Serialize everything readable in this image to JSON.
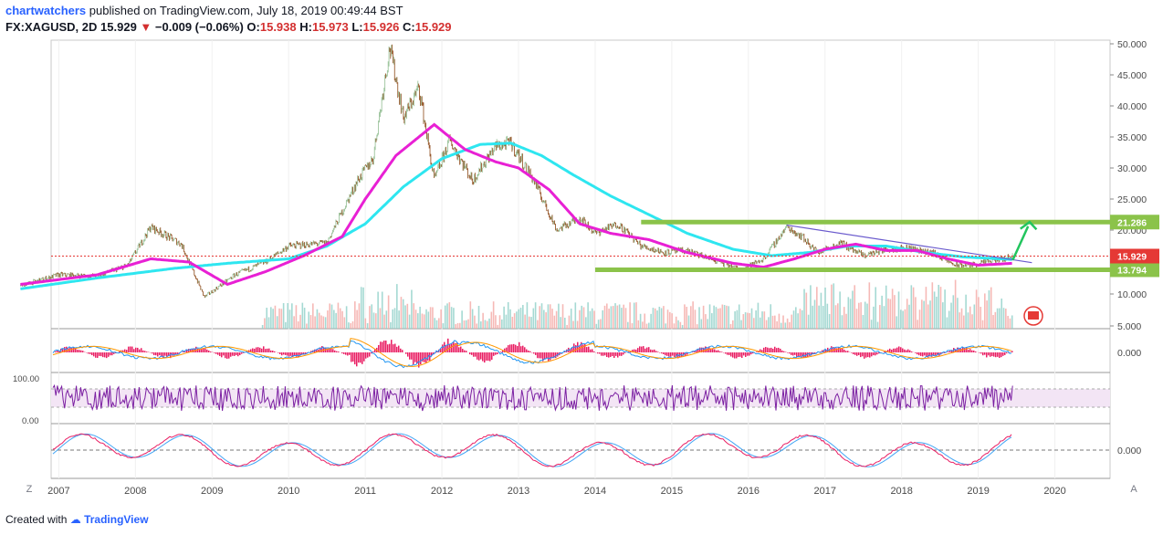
{
  "header": {
    "author": "chartwatchers",
    "published": "published on TradingView.com, July 18, 2019 00:49:44 BST",
    "symbol": "FX:XAGUSD, 2D",
    "last": "15.929",
    "change": "−0.009 (−0.06%)",
    "o_label": "O:",
    "o": "15.938",
    "h_label": "H:",
    "h": "15.973",
    "l_label": "L:",
    "l": "15.926",
    "c_label": "C:",
    "c": "15.929"
  },
  "footer": {
    "created": "Created with",
    "brand": "TradingView"
  },
  "buttons": {
    "left": "Z",
    "right": "A"
  },
  "colors": {
    "candle_up": "#8fbc8f",
    "candle_down": "#8b4513",
    "ma_fast": "#e820d4",
    "ma_slow": "#2ee6f0",
    "level": "#8bc34a",
    "last_price": "#e53935"
  },
  "chart_data": [
    {
      "type": "line",
      "panel": "price",
      "x_labels": [
        "2007",
        "2008",
        "2009",
        "2010",
        "2011",
        "2012",
        "2013",
        "2014",
        "2015",
        "2016",
        "2017",
        "2018",
        "2019",
        "2020"
      ],
      "y_ticks": [
        "50.000",
        "45.000",
        "40.000",
        "35.000",
        "30.000",
        "25.000",
        "20.000",
        "10.000",
        "5.000"
      ],
      "ylim": [
        5,
        50
      ],
      "price_series": {
        "x": [
          2006.5,
          2007.0,
          2007.5,
          2007.9,
          2008.2,
          2008.6,
          2008.9,
          2009.3,
          2009.7,
          2010.0,
          2010.5,
          2010.9,
          2011.1,
          2011.32,
          2011.5,
          2011.7,
          2011.9,
          2012.1,
          2012.4,
          2012.7,
          2012.9,
          2013.2,
          2013.5,
          2013.8,
          2014.0,
          2014.3,
          2014.6,
          2014.9,
          2015.2,
          2015.5,
          2015.9,
          2016.2,
          2016.5,
          2016.7,
          2016.9,
          2017.2,
          2017.5,
          2017.8,
          2018.1,
          2018.4,
          2018.7,
          2018.9,
          2019.2,
          2019.45
        ],
        "y": [
          11.3,
          13.0,
          12.8,
          14.5,
          20.5,
          17.8,
          9.5,
          13.0,
          15.0,
          17.5,
          18.0,
          28.0,
          31.5,
          49.5,
          38.0,
          43.0,
          28.0,
          34.5,
          28.0,
          33.5,
          34.0,
          28.0,
          20.0,
          22.0,
          19.5,
          21.0,
          17.5,
          16.5,
          16.8,
          15.5,
          13.8,
          15.5,
          20.5,
          19.0,
          16.5,
          18.0,
          16.0,
          17.0,
          17.2,
          16.5,
          14.5,
          14.5,
          15.2,
          15.9
        ]
      },
      "ma_fast": {
        "x": [
          2006.5,
          2007.5,
          2008.2,
          2008.7,
          2009.2,
          2009.7,
          2010.2,
          2010.7,
          2011.0,
          2011.4,
          2011.9,
          2012.3,
          2012.7,
          2013.0,
          2013.4,
          2013.8,
          2014.2,
          2014.7,
          2015.2,
          2015.8,
          2016.2,
          2016.6,
          2017.0,
          2017.4,
          2017.8,
          2018.2,
          2018.6,
          2019.0,
          2019.45
        ],
        "y": [
          11.5,
          13.0,
          15.5,
          15.0,
          11.5,
          13.5,
          16.0,
          19.0,
          25.0,
          32.0,
          37.0,
          33.0,
          31.0,
          30.0,
          26.5,
          21.0,
          19.5,
          18.5,
          16.5,
          14.8,
          14.2,
          15.5,
          17.0,
          17.8,
          16.8,
          16.8,
          15.5,
          14.5,
          14.8
        ]
      },
      "ma_slow": {
        "x": [
          2006.5,
          2007.5,
          2008.5,
          2009.2,
          2010.0,
          2010.5,
          2011.0,
          2011.5,
          2012.0,
          2012.5,
          2012.9,
          2013.3,
          2013.7,
          2014.2,
          2014.7,
          2015.2,
          2015.8,
          2016.3,
          2016.8,
          2017.3,
          2017.8,
          2018.3,
          2018.8,
          2019.45
        ],
        "y": [
          10.8,
          12.5,
          14.0,
          14.8,
          15.5,
          17.5,
          21.0,
          27.0,
          31.5,
          33.8,
          34.0,
          32.0,
          29.0,
          25.5,
          22.5,
          19.5,
          17.0,
          16.0,
          16.5,
          17.5,
          17.5,
          16.5,
          15.8,
          15.4
        ]
      },
      "levels": [
        {
          "value": 21.286,
          "label": "21.286"
        },
        {
          "value": 13.794,
          "label": "13.794"
        }
      ],
      "last_price": {
        "value": 15.929,
        "label": "15.929"
      }
    },
    {
      "type": "bar",
      "panel": "macd",
      "y_ticks": [
        "0.000"
      ]
    },
    {
      "type": "line",
      "panel": "rsi",
      "y_ticks": [
        "100.00",
        "0.00"
      ],
      "ylim": [
        0,
        100
      ]
    },
    {
      "type": "line",
      "panel": "oscillator",
      "y_ticks": [
        "0.000"
      ]
    }
  ]
}
